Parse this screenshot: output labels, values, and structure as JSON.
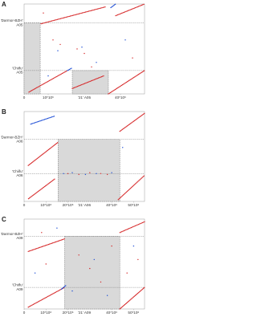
{
  "chart_data": [
    {
      "type": "scatter",
      "label": "A",
      "xlabel": "'21' A05",
      "ylabels": [
        {
          "value": 79,
          "lines": [
            "'Darmor-BZH'",
            "A05"
          ]
        },
        {
          "value": 26,
          "lines": [
            "'Chiifu'",
            "A05"
          ]
        }
      ],
      "xlim": [
        0,
        50000000
      ],
      "ylim": [
        0,
        100
      ],
      "xticks": [
        0,
        {
          "value": 10000000,
          "label": "10*10⁶"
        },
        {
          "value": 40000000,
          "label": "40*10⁶"
        }
      ],
      "regions": [
        {
          "x": [
            0,
            6700000
          ],
          "y": [
            0,
            79
          ]
        },
        {
          "x": [
            20000000,
            35000000
          ],
          "y": [
            0,
            26
          ]
        }
      ],
      "series": [
        {
          "style": "line",
          "color": "#d62728",
          "x": [
            7000000,
            34000000,
            null,
            38000000,
            50000000,
            null,
            2000000,
            18000000,
            null,
            20000000,
            33000000,
            null,
            35000000,
            50000000
          ],
          "values": [
            78,
            97,
            null,
            87,
            100,
            null,
            2,
            26,
            null,
            6,
            20,
            null,
            0,
            26
          ]
        },
        {
          "style": "line",
          "color": "#1f4fd6",
          "x": [
            36000000,
            38000000,
            null,
            18000000,
            20000000
          ],
          "values": [
            96,
            100,
            null,
            26,
            29
          ]
        },
        {
          "style": "points",
          "color": "#d62728",
          "x": [
            12000000,
            15000000,
            22000000,
            25000000,
            45000000,
            8000000,
            28000000
          ],
          "values": [
            60,
            55,
            50,
            45,
            40,
            90,
            30
          ]
        },
        {
          "style": "points",
          "color": "#1f4fd6",
          "x": [
            14000000,
            24000000,
            30000000,
            42000000,
            10000000
          ],
          "values": [
            48,
            52,
            35,
            60,
            20
          ]
        }
      ]
    },
    {
      "type": "scatter",
      "label": "B",
      "xlabel": "'21' A06",
      "ylabels": [
        {
          "value": 69,
          "lines": [
            "'Darmor-BZH'",
            "A06"
          ]
        },
        {
          "value": 31,
          "lines": [
            "'Chiifu'",
            "A06"
          ]
        }
      ],
      "xlim": [
        0,
        55000000
      ],
      "ylim": [
        0,
        100
      ],
      "xticks": [
        0,
        {
          "value": 10000000,
          "label": "10*10⁶"
        },
        {
          "value": 20000000,
          "label": "20*10⁶"
        },
        {
          "value": 40000000,
          "label": "40*10⁶"
        },
        {
          "value": 50000000,
          "label": "50*10⁶"
        }
      ],
      "regions": [
        {
          "x": [
            15500000,
            43700000
          ],
          "y": [
            0,
            69
          ]
        }
      ],
      "series": [
        {
          "style": "line",
          "color": "#d62728",
          "x": [
            1900000,
            15600000,
            null,
            43700000,
            55000000,
            null,
            43000000,
            55000000,
            null,
            2000000,
            14000000
          ],
          "values": [
            40,
            66,
            null,
            78,
            98,
            null,
            2,
            29,
            null,
            3,
            25
          ]
        },
        {
          "style": "line",
          "color": "#1f4fd6",
          "x": [
            3000000,
            14000000
          ],
          "values": [
            86,
            95
          ]
        },
        {
          "style": "points",
          "color": "#d62728",
          "x": [
            20000000,
            25000000,
            30000000,
            35000000,
            38000000
          ],
          "values": [
            31,
            30,
            32,
            31,
            30
          ]
        },
        {
          "style": "points",
          "color": "#1f4fd6",
          "x": [
            18000000,
            22000000,
            28000000,
            33000000,
            40000000,
            45000000
          ],
          "values": [
            31,
            32,
            30,
            31,
            32,
            60
          ]
        }
      ]
    },
    {
      "type": "scatter",
      "label": "C",
      "xlabel": "'21' A09",
      "ylabels": [
        {
          "value": 81,
          "lines": [
            "'Darmor-BZH'",
            "A09"
          ]
        },
        {
          "value": 24,
          "lines": [
            "'Chiifu'",
            "A09"
          ]
        }
      ],
      "xlim": [
        0,
        55000000
      ],
      "ylim": [
        0,
        100
      ],
      "xticks": [
        0,
        {
          "value": 10000000,
          "label": "10*10⁶"
        },
        {
          "value": 20000000,
          "label": "20*10⁶"
        },
        {
          "value": 40000000,
          "label": "40*10⁶"
        },
        {
          "value": 50000000,
          "label": "50*10⁶"
        }
      ],
      "regions": [
        {
          "x": [
            18500000,
            43700000
          ],
          "y": [
            0,
            81
          ]
        }
      ],
      "series": [
        {
          "style": "line",
          "color": "#d62728",
          "x": [
            1900000,
            18500000,
            null,
            43700000,
            55000000,
            null,
            1900000,
            18500000,
            null,
            43700000,
            55000000
          ],
          "values": [
            64,
            78,
            null,
            85,
            97,
            null,
            2,
            24,
            null,
            0,
            24
          ]
        },
        {
          "style": "line",
          "color": "#1f4fd6",
          "x": [
            17000000,
            19000000
          ],
          "values": [
            22,
            26
          ]
        },
        {
          "style": "points",
          "color": "#d62728",
          "x": [
            10000000,
            25000000,
            30000000,
            35000000,
            40000000,
            47000000,
            52000000,
            8000000
          ],
          "values": [
            50,
            60,
            45,
            30,
            70,
            40,
            55,
            85
          ]
        },
        {
          "style": "points",
          "color": "#1f4fd6",
          "x": [
            5000000,
            15000000,
            22000000,
            32000000,
            38000000,
            50000000
          ],
          "values": [
            40,
            90,
            20,
            55,
            15,
            70
          ]
        }
      ]
    }
  ]
}
